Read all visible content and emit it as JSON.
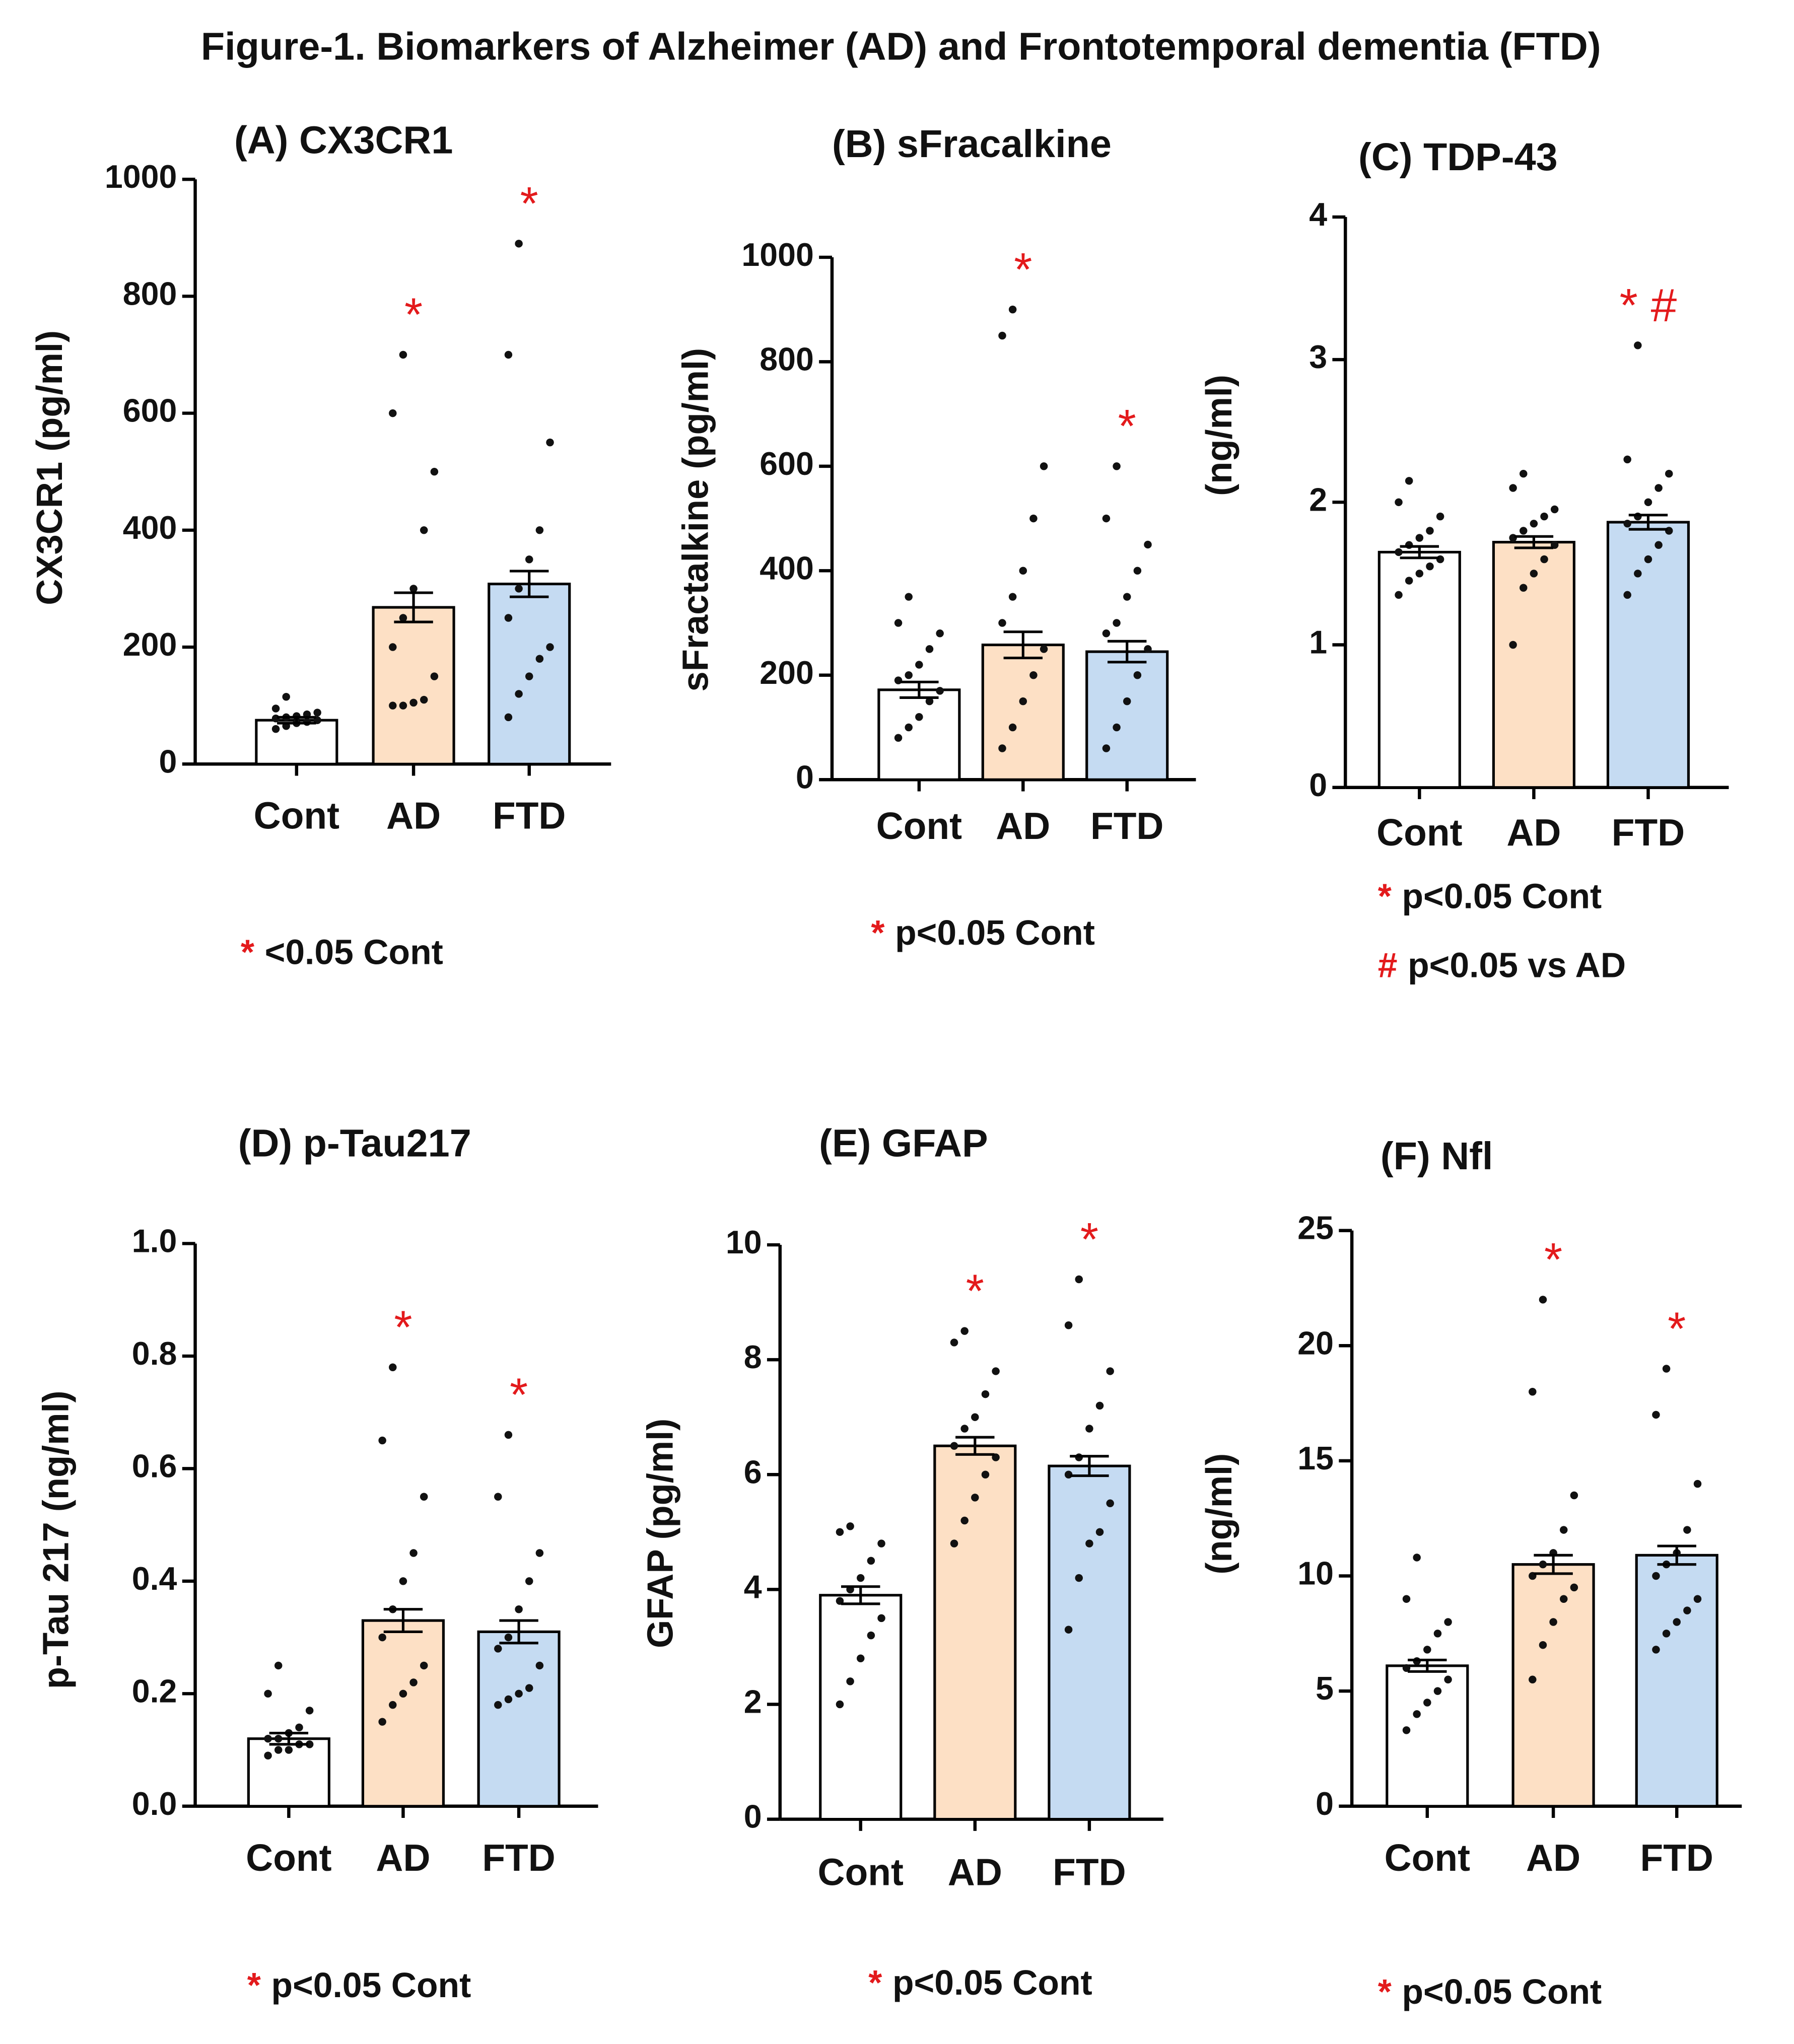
{
  "figure_title": "Figure-1. Biomarkers of Alzheimer (AD) and Frontotemporal dementia (FTD)",
  "chart_data": [
    {
      "type": "bar",
      "title": "(A)  CX3CR1",
      "ylabel": "CX3CR1  (pg/ml)",
      "categories": [
        "Cont",
        "AD",
        "FTD"
      ],
      "values": [
        75,
        268,
        308
      ],
      "errors": [
        5,
        25,
        22
      ],
      "colors": [
        "#ffffff",
        "#fde0c5",
        "#c5dbf2"
      ],
      "points": [
        [
          60,
          65,
          70,
          72,
          75,
          78,
          80,
          82,
          85,
          88,
          95,
          115
        ],
        [
          100,
          100,
          105,
          110,
          150,
          200,
          250,
          300,
          400,
          500,
          600,
          700
        ],
        [
          80,
          120,
          150,
          180,
          200,
          250,
          300,
          350,
          400,
          550,
          700,
          890
        ]
      ],
      "ylim": [
        0,
        1000
      ],
      "yticks": [
        0,
        200,
        400,
        600,
        800,
        1000
      ],
      "annotations": [
        null,
        "*",
        "*"
      ],
      "footnotes": [
        {
          "symbol": "*",
          "text": "<0.05 Cont"
        }
      ]
    },
    {
      "type": "bar",
      "title": "(B)  sFracalkine",
      "ylabel": "sFractalkine  (pg/ml)",
      "categories": [
        "Cont",
        "AD",
        "FTD"
      ],
      "values": [
        172,
        258,
        245
      ],
      "errors": [
        15,
        25,
        20
      ],
      "colors": [
        "#ffffff",
        "#fde0c5",
        "#c5dbf2"
      ],
      "points": [
        [
          80,
          100,
          120,
          150,
          170,
          190,
          200,
          220,
          250,
          280,
          300,
          350
        ],
        [
          60,
          100,
          150,
          200,
          250,
          300,
          350,
          400,
          500,
          600,
          850,
          900
        ],
        [
          60,
          100,
          150,
          200,
          250,
          280,
          300,
          350,
          400,
          450,
          500,
          600
        ]
      ],
      "ylim": [
        0,
        1000
      ],
      "yticks": [
        0,
        200,
        400,
        600,
        800,
        1000
      ],
      "annotations": [
        null,
        "*",
        "*"
      ],
      "footnotes": [
        {
          "symbol": "*",
          "text": "p<0.05 Cont"
        }
      ]
    },
    {
      "type": "bar",
      "title": "(C)  TDP-43",
      "ylabel": "(ng/ml)",
      "categories": [
        "Cont",
        "AD",
        "FTD"
      ],
      "values": [
        1.65,
        1.72,
        1.86
      ],
      "errors": [
        0.04,
        0.04,
        0.05
      ],
      "colors": [
        "#ffffff",
        "#fde0c5",
        "#c5dbf2"
      ],
      "points": [
        [
          1.35,
          1.45,
          1.5,
          1.55,
          1.6,
          1.65,
          1.7,
          1.75,
          1.8,
          1.9,
          2.0,
          2.15
        ],
        [
          1.0,
          1.4,
          1.5,
          1.6,
          1.7,
          1.75,
          1.8,
          1.85,
          1.9,
          1.95,
          2.1,
          2.2
        ],
        [
          1.35,
          1.5,
          1.6,
          1.7,
          1.8,
          1.85,
          1.9,
          2.0,
          2.1,
          2.2,
          2.3,
          3.1
        ]
      ],
      "ylim": [
        0,
        4
      ],
      "yticks": [
        0,
        1,
        2,
        3,
        4
      ],
      "annotations": [
        null,
        null,
        "*  #"
      ],
      "footnotes": [
        {
          "symbol": "*",
          "text": "p<0.05 Cont"
        },
        {
          "symbol": "#",
          "text": "p<0.05 vs AD"
        }
      ]
    },
    {
      "type": "bar",
      "title": "(D) p-Tau217",
      "ylabel": "p-Tau 217  (ng/ml)",
      "categories": [
        "Cont",
        "AD",
        "FTD"
      ],
      "values": [
        0.12,
        0.33,
        0.31
      ],
      "errors": [
        0.01,
        0.02,
        0.02
      ],
      "colors": [
        "#ffffff",
        "#fde0c5",
        "#c5dbf2"
      ],
      "points": [
        [
          0.09,
          0.1,
          0.1,
          0.11,
          0.11,
          0.12,
          0.12,
          0.13,
          0.14,
          0.17,
          0.2,
          0.25
        ],
        [
          0.15,
          0.18,
          0.2,
          0.22,
          0.25,
          0.3,
          0.35,
          0.4,
          0.45,
          0.55,
          0.65,
          0.78
        ],
        [
          0.18,
          0.19,
          0.2,
          0.21,
          0.25,
          0.28,
          0.3,
          0.35,
          0.4,
          0.45,
          0.55,
          0.66
        ]
      ],
      "ylim": [
        0,
        1
      ],
      "yticks": [
        {
          "value": 0,
          "label": "0.0"
        },
        0.2,
        0.4,
        0.6,
        0.8,
        {
          "value": 1,
          "label": "1.0"
        }
      ],
      "annotations": [
        null,
        "*",
        "*"
      ],
      "footnotes": [
        {
          "symbol": "*",
          "text": "p<0.05 Cont"
        }
      ]
    },
    {
      "type": "bar",
      "title": "(E)  GFAP",
      "ylabel": "GFAP  (pg/ml)",
      "categories": [
        "Cont",
        "AD",
        "FTD"
      ],
      "values": [
        3.9,
        6.5,
        6.15
      ],
      "errors": [
        0.15,
        0.15,
        0.17
      ],
      "colors": [
        "#ffffff",
        "#fde0c5",
        "#c5dbf2"
      ],
      "points": [
        [
          2.0,
          2.4,
          2.8,
          3.2,
          3.5,
          3.8,
          4.0,
          4.2,
          4.5,
          4.8,
          5.0,
          5.1
        ],
        [
          4.8,
          5.2,
          5.6,
          6.0,
          6.3,
          6.5,
          6.8,
          7.0,
          7.4,
          7.8,
          8.3,
          8.5
        ],
        [
          3.3,
          4.2,
          4.8,
          5.0,
          5.5,
          6.0,
          6.3,
          6.8,
          7.2,
          7.8,
          8.6,
          9.4
        ]
      ],
      "ylim": [
        0,
        10
      ],
      "yticks": [
        0,
        2,
        4,
        6,
        8,
        10
      ],
      "annotations": [
        null,
        "*",
        "*"
      ],
      "footnotes": [
        {
          "symbol": "*",
          "text": "p<0.05 Cont"
        }
      ]
    },
    {
      "type": "bar",
      "title": "(F) Nfl",
      "ylabel": "(ng/ml)",
      "categories": [
        "Cont",
        "AD",
        "FTD"
      ],
      "values": [
        6.1,
        10.5,
        10.9
      ],
      "errors": [
        0.25,
        0.4,
        0.4
      ],
      "colors": [
        "#ffffff",
        "#fde0c5",
        "#c5dbf2"
      ],
      "points": [
        [
          3.3,
          4.0,
          4.5,
          5.0,
          5.5,
          6.0,
          6.3,
          6.8,
          7.5,
          8.0,
          9.0,
          10.8
        ],
        [
          5.5,
          7,
          8,
          9,
          9.5,
          10,
          10.5,
          11,
          12,
          13.5,
          18,
          22
        ],
        [
          6.8,
          7.5,
          8,
          8.5,
          9,
          10,
          10.5,
          11,
          12,
          14,
          17,
          19
        ]
      ],
      "ylim": [
        0,
        25
      ],
      "yticks": [
        0,
        5,
        10,
        15,
        20,
        25
      ],
      "annotations": [
        null,
        "*",
        "*"
      ],
      "footnotes": [
        {
          "symbol": "*",
          "text": "p<0.05 Cont"
        }
      ]
    }
  ]
}
